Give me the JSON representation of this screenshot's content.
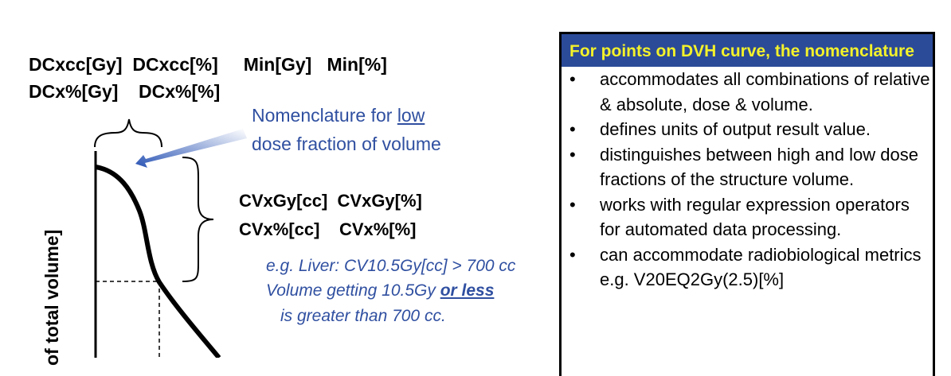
{
  "labels": {
    "dc_row1": [
      "DCxcc[Gy]",
      "DCxcc[%]",
      "Min[Gy]",
      "Min[%]"
    ],
    "dc_row2": [
      "DCx%[Gy]",
      "DCx%[%]"
    ],
    "low_note_1": "Nomenclature for ",
    "low_note_underlined": "low",
    "low_note_2": "dose fraction of volume",
    "cv_row1": [
      "CVxGy[cc]",
      "CVxGy[%]"
    ],
    "cv_row2": [
      "CVx%[cc]",
      "CVx%[%]"
    ],
    "example_1": "e.g. Liver: CV10.5Gy[cc] > 700 cc",
    "example_2a": "Volume getting 10.5Gy ",
    "example_2b": "or less",
    "example_3": "is greater than 700 cc.",
    "y_axis": "of  total volume]"
  },
  "box": {
    "title": "For points on DVH curve, the nomenclature",
    "bullets": [
      "accommodates all combinations of relative & absolute, dose & volume.",
      "defines units of output result value.",
      "distinguishes between high and low dose fractions of the structure volume.",
      "works with regular expression operators for automated data processing.",
      "can accommodate radiobiological metrics e.g. V20EQ2Gy(2.5)[%]"
    ]
  },
  "colors": {
    "header_bg": "#2B4A98",
    "header_text": "#F4F22A",
    "note_blue": "#2F4FA0"
  }
}
